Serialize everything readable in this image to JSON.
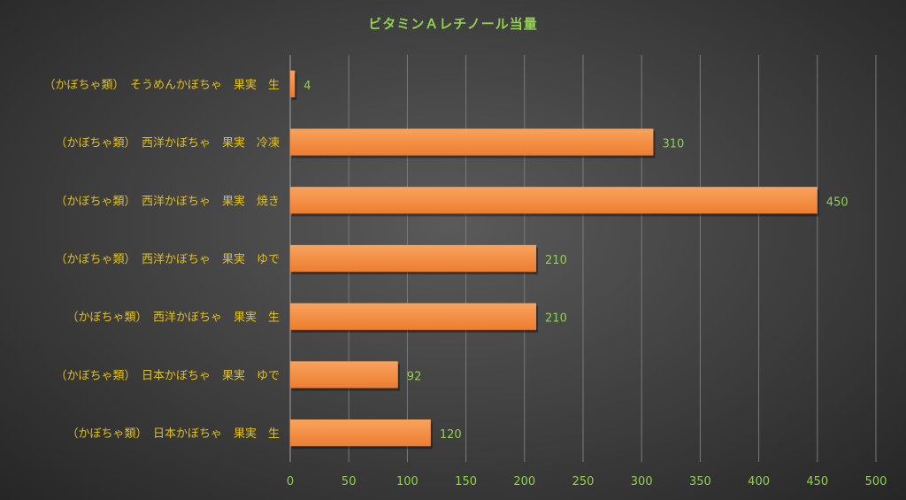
{
  "chart_data": {
    "type": "bar",
    "orientation": "horizontal",
    "title": "ビタミンＡレチノール当量",
    "categories": [
      "（かぼちゃ類）　そうめんかぼちゃ　果実　生",
      "（かぼちゃ類）　西洋かぼちゃ　果実　冷凍",
      "（かぼちゃ類）　西洋かぼちゃ　果実　焼き",
      "（かぼちゃ類）　西洋かぼちゃ　果実　ゆで",
      "（かぼちゃ類）　西洋かぼちゃ　果実　生",
      "（かぼちゃ類）　日本かぼちゃ　果実　ゆで",
      "（かぼちゃ類）　日本かぼちゃ　果実　生"
    ],
    "values": [
      4,
      310,
      450,
      210,
      210,
      92,
      120
    ],
    "xlim": [
      0,
      500
    ],
    "x_ticks": [
      0,
      50,
      100,
      150,
      200,
      250,
      300,
      350,
      400,
      450,
      500
    ],
    "grid": true,
    "legend": "none",
    "colors": {
      "bar": "#ed7d31",
      "bar_highlight": "#f8a35e",
      "title": "#92d050",
      "category_label": "#e0c020",
      "tick_label": "#92d050",
      "data_label": "#92d050",
      "gridline": "#7a7a7a"
    }
  }
}
